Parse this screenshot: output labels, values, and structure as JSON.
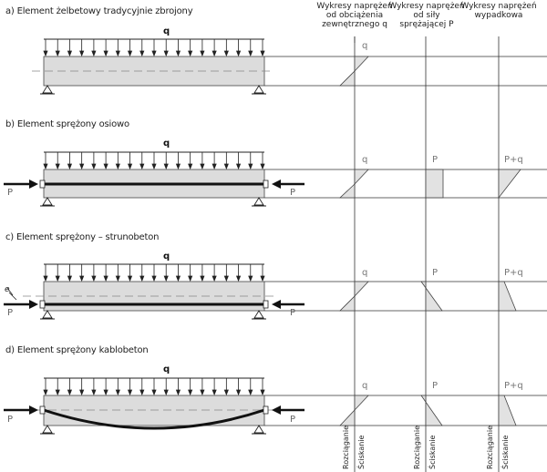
{
  "headers": {
    "col1": [
      "Wykresy naprężeń",
      "od obciążenia",
      "zewnętrznego q"
    ],
    "col2": [
      "Wykresy naprężeń",
      "od siły",
      "sprężającej P"
    ],
    "col3": [
      "Wykresy naprężeń",
      "wypadkowa"
    ]
  },
  "sections": {
    "a": {
      "title": "a)  Element żelbetowy tradycyjnie zbrojony",
      "load": "q",
      "diag1": "q"
    },
    "b": {
      "title": "b)  Element sprężony osiowo",
      "load": "q",
      "force_left": "P",
      "force_right": "P",
      "diag1": "q",
      "diag2": "P",
      "diag3": "P+q"
    },
    "c": {
      "title": "c)  Element sprężony – strunobeton",
      "load": "q",
      "ecc": "e",
      "force_left": "P",
      "force_right": "P",
      "diag1": "q",
      "diag2": "P",
      "diag3": "P+q"
    },
    "d": {
      "title": "d)  Element sprężony kablobeton",
      "load": "q",
      "force_left": "P",
      "force_right": "P",
      "diag1": "q",
      "diag2": "P",
      "diag3": "P+q"
    }
  },
  "bottom_labels": {
    "tension": "Rozciąganie",
    "compression": "Ściskanie"
  }
}
